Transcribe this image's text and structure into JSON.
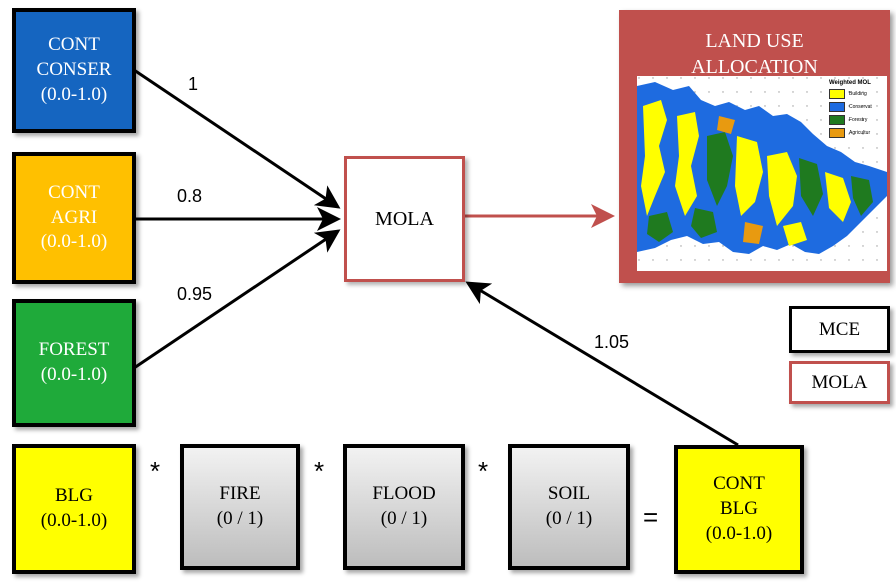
{
  "inputs": {
    "cont_conser": {
      "text": "CONT\nCONSER\n(0.0-1.0)",
      "color": "#1565c0"
    },
    "cont_agri": {
      "text": "CONT\nAGRI\n(0.0-1.0)",
      "color": "#ffc000"
    },
    "forest": {
      "text": "FOREST\n(0.0-1.0)",
      "color": "#1faa3a"
    }
  },
  "weights": {
    "conser": "1",
    "agri": "0.8",
    "forest": "0.95",
    "blg": "1.05"
  },
  "mola_label": "MOLA",
  "output": {
    "title": "LAND USE\nALLOCATION",
    "map_legend": {
      "title": "Weighted MOL",
      "items": [
        {
          "label": "Building",
          "color": "#ffff00"
        },
        {
          "label": "Conservat",
          "color": "#1e6be0"
        },
        {
          "label": "Forestry",
          "color": "#1f7a1f"
        },
        {
          "label": "Agricultur",
          "color": "#e89a10"
        }
      ]
    }
  },
  "legend": {
    "mce": "MCE",
    "mola": "MOLA"
  },
  "bottom_row": {
    "blg": "BLG\n(0.0-1.0)",
    "fire": "FIRE\n(0 / 1)",
    "flood": "FLOOD\n(0 / 1)",
    "soil": "SOIL\n(0 / 1)",
    "cont_blg": "CONT\nBLG\n(0.0-1.0)",
    "op_multiply": "*",
    "op_equals": "="
  },
  "colors": {
    "mola_border": "#c0504d",
    "panel": "#c0504d",
    "yellow": "#ffff00"
  }
}
